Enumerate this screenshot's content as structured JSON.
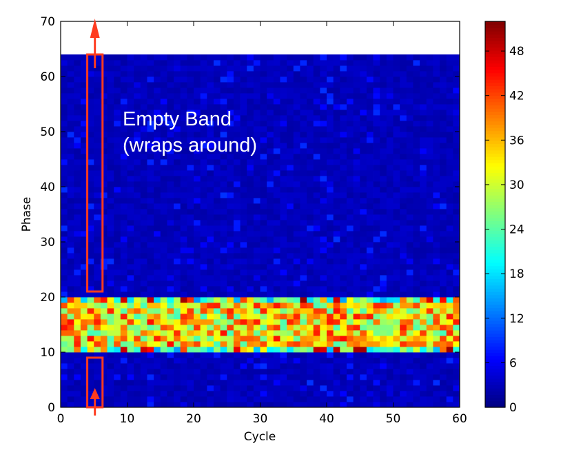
{
  "chart_data": {
    "type": "heatmap",
    "xlabel": "Cycle",
    "ylabel": "Phase",
    "xlim": [
      0,
      60
    ],
    "ylim": [
      0,
      70
    ],
    "x_ticks": [
      "0",
      "10",
      "20",
      "30",
      "40",
      "50",
      "60"
    ],
    "y_ticks": [
      "0",
      "10",
      "20",
      "30",
      "40",
      "50",
      "60",
      "70"
    ],
    "grid_cols": 60,
    "grid_rows": 64,
    "colorbar": {
      "colormap": "jet",
      "range": [
        0,
        52
      ],
      "ticks": [
        "0",
        "6",
        "12",
        "18",
        "24",
        "30",
        "36",
        "42",
        "48"
      ]
    },
    "band": {
      "phase_low": 10,
      "phase_high": 20,
      "typical_value": 34,
      "background_value": 2
    },
    "annotations": {
      "text_line1": "Empty Band",
      "text_line2": "(wraps around)",
      "box_top": {
        "x0": 4.0,
        "x1": 6.3,
        "y0": 21,
        "y1": 64
      },
      "box_bottom": {
        "x0": 4.0,
        "x1": 6.3,
        "y0": 0,
        "y1": 9
      },
      "color": "#ff3b1f"
    }
  }
}
